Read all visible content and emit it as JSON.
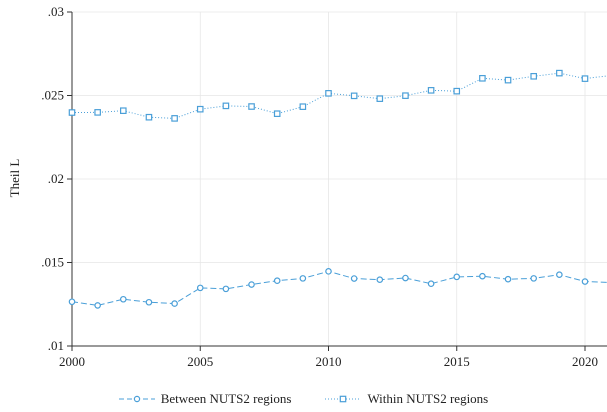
{
  "chart_data": {
    "type": "line",
    "title": "",
    "xlabel": "",
    "ylabel": "Theil L",
    "xlim": [
      2000,
      2020.7
    ],
    "ylim": [
      0.01,
      0.03
    ],
    "xticks": [
      2000,
      2005,
      2010,
      2015,
      2020
    ],
    "xtick_labels": [
      "2000",
      "2005",
      "2010",
      "2015",
      "2020"
    ],
    "yticks": [
      0.01,
      0.015,
      0.02,
      0.025,
      0.03
    ],
    "ytick_labels": [
      ".01",
      ".015",
      ".02",
      ".025",
      ".03"
    ],
    "grid": true,
    "legend_position": "bottom",
    "x": [
      2000,
      2001,
      2002,
      2003,
      2004,
      2005,
      2006,
      2007,
      2008,
      2009,
      2010,
      2011,
      2012,
      2013,
      2014,
      2015,
      2016,
      2017,
      2018,
      2019,
      2020,
      2021
    ],
    "series": [
      {
        "name": "Between NUTS2 regions",
        "marker": "circle",
        "line_style": "dashed",
        "color": "#4a9fd8",
        "values": [
          0.01265,
          0.01243,
          0.0128,
          0.01262,
          0.01254,
          0.01348,
          0.01342,
          0.01368,
          0.01391,
          0.01405,
          0.01447,
          0.01404,
          0.01397,
          0.01407,
          0.01373,
          0.01414,
          0.01418,
          0.014,
          0.01405,
          0.01427,
          0.01386,
          0.0138
        ]
      },
      {
        "name": "Within NUTS2 regions",
        "marker": "square",
        "line_style": "dotted",
        "color": "#4a9fd8",
        "values": [
          0.02398,
          0.02399,
          0.02409,
          0.0237,
          0.02363,
          0.02418,
          0.02438,
          0.02434,
          0.02391,
          0.02433,
          0.02513,
          0.02498,
          0.02481,
          0.02499,
          0.02531,
          0.02526,
          0.02603,
          0.02592,
          0.02615,
          0.02634,
          0.02601,
          0.0262
        ]
      }
    ]
  }
}
